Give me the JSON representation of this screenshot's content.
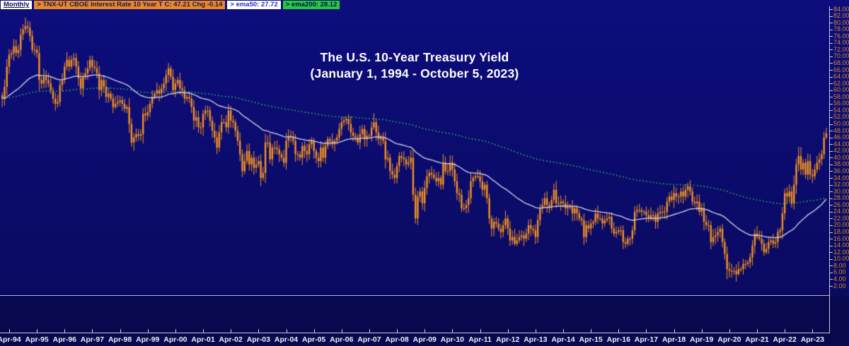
{
  "header": {
    "timeframe": "Monthly",
    "symbol": "> TNX-UT  CBOE Interest Rate 10 Year T  C: 47.21  Chg -0.14",
    "ema50": "> ema50: 27.72",
    "ema200": "> ema200: 28.12"
  },
  "title": {
    "line1": "The U.S. 10-Year Treasury Yield",
    "line2": "(January 1, 1994 - October 5, 2023)"
  },
  "colors": {
    "candle": "#f7941f",
    "ema50_line": "#cbcbe0",
    "ema200_line": "#2fae52",
    "axis_line": "#c9c9da",
    "y_label": "#d8891b",
    "x_label": "#eef0f8"
  },
  "chart_data": {
    "type": "candlestick",
    "title": "The U.S. 10-Year Treasury Yield (January 1, 1994 - October 5, 2023)",
    "series_label": "TNX-UT CBOE Interest Rate 10 Year T (yield x 10), monthly",
    "start_month": "1994-01",
    "end_month": "2023-10",
    "last_close": 47.21,
    "last_change": -0.14,
    "grid": false,
    "legend_position": "top-left",
    "y_axis": {
      "min": 2,
      "max": 84,
      "step": 2,
      "side": "right"
    },
    "x_ticks": [
      "Apr-94",
      "Apr-95",
      "Apr-96",
      "Apr-97",
      "Apr-98",
      "Apr-99",
      "Apr-00",
      "Apr-01",
      "Apr-02",
      "Apr-03",
      "Apr-04",
      "Apr-05",
      "Apr-06",
      "Apr-07",
      "Apr-08",
      "Apr-09",
      "Apr-10",
      "Apr-11",
      "Apr-12",
      "Apr-13",
      "Apr-14",
      "Apr-15",
      "Apr-16",
      "Apr-17",
      "Apr-18",
      "Apr-19",
      "Apr-20",
      "Apr-21",
      "Apr-22",
      "Apr-23"
    ],
    "monthly_close": [
      57.5,
      61,
      67,
      70.5,
      71,
      73,
      71,
      72,
      76.5,
      78,
      79,
      78.5,
      76,
      72,
      72,
      71,
      63,
      62,
      64,
      63,
      62,
      60,
      57.5,
      56,
      56.5,
      61.5,
      63,
      67,
      69,
      67,
      69,
      69.5,
      67,
      63.5,
      60.5,
      64,
      65,
      66.5,
      69,
      67,
      66.5,
      65,
      60,
      63,
      61,
      58,
      59,
      57.5,
      55,
      56,
      56.5,
      57,
      56,
      54.5,
      55,
      50,
      44.5,
      46,
      47,
      46.5,
      47,
      53,
      52.5,
      53.5,
      56,
      58,
      59,
      60,
      59,
      60.5,
      62,
      64.5,
      66.5,
      64,
      60,
      62,
      63,
      60.5,
      60,
      57.5,
      58,
      57.5,
      55,
      51,
      52,
      49,
      49,
      53,
      54,
      54,
      51,
      48,
      46,
      43,
      47.5,
      50.5,
      50.5,
      49,
      54,
      51,
      50.5,
      48,
      45,
      41,
      36,
      39,
      42,
      38,
      40,
      37,
      38,
      39,
      34,
      35.5,
      44.5,
      44.5,
      39.5,
      43,
      43,
      42.5,
      41,
      40,
      38.5,
      45,
      46.5,
      46,
      45,
      41,
      41,
      40,
      43.5,
      42,
      41,
      44,
      45,
      42,
      40,
      39,
      43,
      40,
      43.5,
      45.5,
      45,
      44,
      45,
      46,
      48.5,
      50.5,
      51,
      51.5,
      50,
      47.5,
      46.5,
      46,
      44.5,
      47,
      48.5,
      45.5,
      46.5,
      46.5,
      49,
      50.5,
      47.5,
      45.5,
      46,
      45,
      39.5,
      40,
      36,
      35,
      34,
      37.5,
      40.5,
      40,
      39.5,
      38,
      38.5,
      40,
      29,
      22,
      28.5,
      30,
      26.5,
      31,
      34.5,
      35.5,
      35,
      34,
      33,
      34,
      32,
      38.5,
      36,
      36,
      38.5,
      36.5,
      33,
      29.5,
      29,
      25,
      25,
      26,
      28,
      33,
      34,
      34.5,
      34.5,
      33,
      30.5,
      32,
      28,
      22,
      19,
      21,
      20.5,
      19,
      18,
      20,
      22,
      19,
      15.5,
      16.5,
      14.5,
      15.5,
      16.5,
      17,
      16,
      17.5,
      20,
      19,
      18.5,
      16.5,
      21.5,
      25,
      26,
      28,
      26,
      25.5,
      27.5,
      30.5,
      26.5,
      26.5,
      27,
      26.5,
      25,
      25.5,
      25.5,
      23.5,
      25,
      23.5,
      22,
      21.5,
      16.5,
      20,
      19,
      20.5,
      21,
      23.5,
      22,
      22,
      20.5,
      21.5,
      22,
      22.5,
      19,
      17.5,
      18,
      18.5,
      18.5,
      15,
      14.5,
      16,
      16,
      18.5,
      24,
      24.5,
      24.5,
      24,
      24,
      23,
      22,
      23,
      23,
      21,
      23.5,
      24,
      24,
      24,
      27,
      28.5,
      27.5,
      29.5,
      28.5,
      28.5,
      30,
      28.5,
      30.5,
      31.5,
      30,
      27,
      26.5,
      27,
      24,
      25,
      21,
      20,
      20,
      15,
      16.5,
      17,
      18,
      19,
      15,
      11.5,
      7,
      6.5,
      6.5,
      6.5,
      5.5,
      7,
      7,
      8.5,
      8.5,
      9,
      10.5,
      14,
      17.5,
      16.5,
      16,
      14.5,
      12,
      13,
      15,
      15.5,
      14.5,
      15,
      18,
      18.5,
      23.5,
      29.5,
      28.5,
      30,
      26.5,
      32,
      38,
      40.5,
      36.5,
      38.5,
      35,
      39,
      35,
      34.5,
      36.5,
      38.5,
      39.5,
      41,
      46,
      47.21
    ],
    "wick_overrides": {
      "0": {
        "low": 55
      },
      "10": {
        "high": 81.5
      },
      "57": {
        "low": 42
      },
      "161": {
        "high": 53.2
      },
      "179": {
        "low": 20.5
      },
      "222": {
        "low": 13.9
      },
      "270": {
        "low": 13.2
      },
      "314": {
        "low": 4
      },
      "319": {
        "low": 5.1
      },
      "345": {
        "high": 43.3
      },
      "357": {
        "high": 48.9,
        "low": 45.5
      }
    },
    "overlays": [
      {
        "name": "ema50",
        "period": 50,
        "style": "solid",
        "color": "#cbcbe0",
        "last_value": 27.72
      },
      {
        "name": "ema200",
        "period": 200,
        "style": "dotted",
        "color": "#2fae52",
        "last_value": 28.12
      }
    ]
  }
}
